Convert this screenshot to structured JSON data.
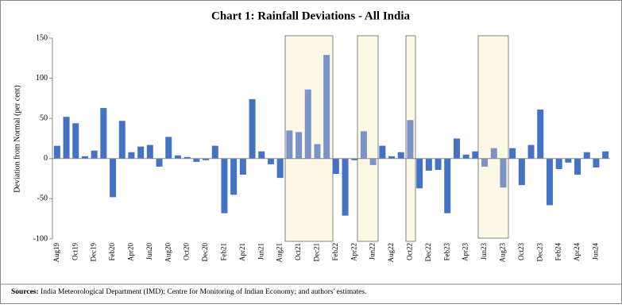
{
  "chart_data": {
    "type": "bar",
    "title": "Chart 1: Rainfall Deviations - All India",
    "y_label": "Deviation from Normal (per cent)",
    "categories": [
      "Aug19",
      null,
      "Oct19",
      null,
      "Dec19",
      null,
      "Feb20",
      null,
      "Apr20",
      null,
      "Jun20",
      null,
      "Aug20",
      null,
      "Oct20",
      null,
      "Dec20",
      null,
      "Feb21",
      null,
      "Apr21",
      null,
      "Jun21",
      null,
      "Aug21",
      null,
      "Oct21",
      null,
      "Dec21",
      null,
      "Feb22",
      null,
      "Apr22",
      null,
      "Jun22",
      null,
      "Aug22",
      null,
      "Oct22",
      null,
      "Dec22",
      null,
      "Feb23",
      null,
      "Apr23",
      null,
      "Jun23",
      null,
      "Aug23",
      null,
      "Oct23",
      null,
      "Dec23",
      null,
      "Feb24",
      null,
      "Apr24",
      null,
      "Jun24",
      null
    ],
    "values": [
      16,
      52,
      44,
      3,
      10,
      63,
      -48,
      47,
      8,
      15,
      17,
      -10,
      27,
      4,
      2,
      -4,
      -2,
      16,
      -68,
      -45,
      -20,
      74,
      9,
      -7,
      -24,
      35,
      33,
      86,
      18,
      129,
      -19,
      -71,
      -2,
      34,
      -8,
      16,
      3,
      8,
      48,
      -37,
      -15,
      -14,
      -68,
      25,
      5,
      9,
      -10,
      13,
      -36,
      13,
      -33,
      17,
      61,
      -58,
      -13,
      -5,
      -20,
      8,
      -11,
      9
    ],
    "colors": [
      "#4472c4",
      "#4472c4",
      "#4472c4",
      "#4472c4",
      "#4472c4",
      "#4472c4",
      "#4472c4",
      "#4472c4",
      "#4472c4",
      "#4472c4",
      "#4472c4",
      "#4472c4",
      "#4472c4",
      "#4472c4",
      "#4472c4",
      "#4472c4",
      "#4472c4",
      "#4472c4",
      "#4472c4",
      "#4472c4",
      "#4472c4",
      "#4472c4",
      "#4472c4",
      "#4472c4",
      "#4472c4",
      "#7b93c9",
      "#7b93c9",
      "#7b93c9",
      "#7b93c9",
      "#7b93c9",
      "#4472c4",
      "#4472c4",
      "#4472c4",
      "#7b93c9",
      "#7b93c9",
      "#4472c4",
      "#4472c4",
      "#4472c4",
      "#7b93c9",
      "#4472c4",
      "#4472c4",
      "#4472c4",
      "#4472c4",
      "#4472c4",
      "#4472c4",
      "#4472c4",
      "#7b93c9",
      "#7b93c9",
      "#7b93c9",
      "#4472c4",
      "#4472c4",
      "#4472c4",
      "#4472c4",
      "#4472c4",
      "#4472c4",
      "#4472c4",
      "#4472c4",
      "#4472c4",
      "#4472c4",
      "#4472c4"
    ],
    "ylim": [
      -100,
      150
    ],
    "yticks": [
      -100,
      -50,
      0,
      50,
      100,
      150
    ],
    "source_label": "Sources:",
    "source_text": "India Meteorological Department (IMD); Centre for Monitoring of Indian Economy; and authors' estimates."
  }
}
